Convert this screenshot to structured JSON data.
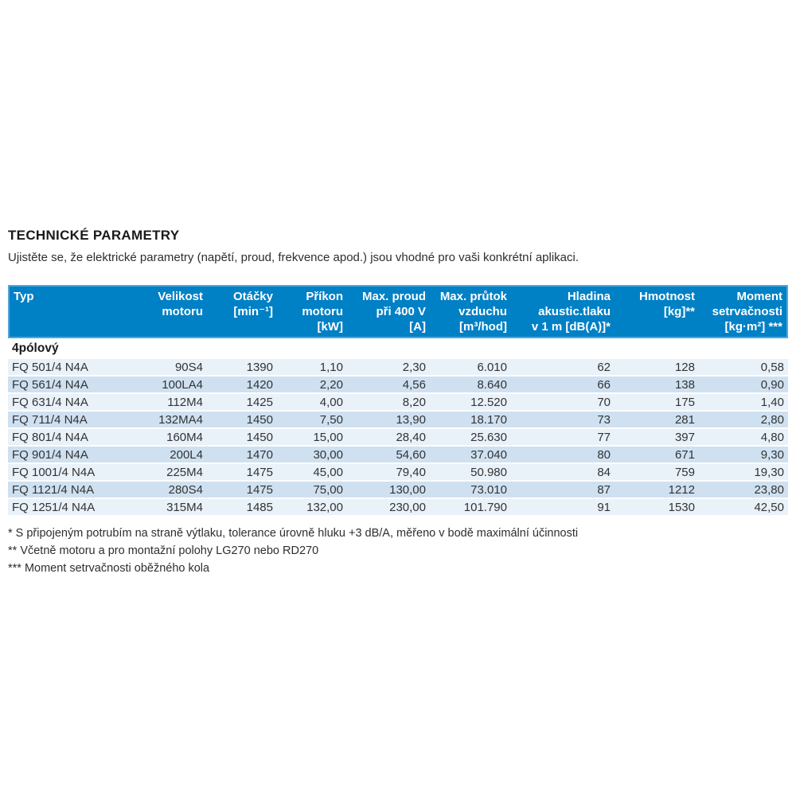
{
  "page": {
    "title": "TECHNICKÉ PARAMETRY",
    "subtitle": "Ujistěte se, že elektrické parametry (napětí, proud, frekvence apod.) jsou vhodné pro vaši konkrétní aplikaci."
  },
  "table": {
    "columns": [
      {
        "label": "Typ"
      },
      {
        "label": "Velikost\nmotoru"
      },
      {
        "label": "Otáčky\n[min⁻¹]"
      },
      {
        "label": "Příkon\nmotoru\n[kW]"
      },
      {
        "label": "Max. proud\npři 400 V\n[A]"
      },
      {
        "label": "Max. průtok\nvzduchu\n[m³/hod]"
      },
      {
        "label": "Hladina\nakustic.tlaku\nv 1 m [dB(A)]*"
      },
      {
        "label": "Hmotnost\n[kg]**"
      },
      {
        "label": "Moment\nsetrvačnosti\n[kg·m²] ***"
      }
    ],
    "section_label": "4pólový",
    "rows": [
      [
        "FQ 501/4 N4A",
        "90S4",
        "1390",
        "1,10",
        "2,30",
        "6.010",
        "62",
        "128",
        "0,58"
      ],
      [
        "FQ 561/4 N4A",
        "100LA4",
        "1420",
        "2,20",
        "4,56",
        "8.640",
        "66",
        "138",
        "0,90"
      ],
      [
        "FQ 631/4 N4A",
        "112M4",
        "1425",
        "4,00",
        "8,20",
        "12.520",
        "70",
        "175",
        "1,40"
      ],
      [
        "FQ 711/4 N4A",
        "132MA4",
        "1450",
        "7,50",
        "13,90",
        "18.170",
        "73",
        "281",
        "2,80"
      ],
      [
        "FQ 801/4 N4A",
        "160M4",
        "1450",
        "15,00",
        "28,40",
        "25.630",
        "77",
        "397",
        "4,80"
      ],
      [
        "FQ 901/4 N4A",
        "200L4",
        "1470",
        "30,00",
        "54,60",
        "37.040",
        "80",
        "671",
        "9,30"
      ],
      [
        "FQ 1001/4 N4A",
        "225M4",
        "1475",
        "45,00",
        "79,40",
        "50.980",
        "84",
        "759",
        "19,30"
      ],
      [
        "FQ 1121/4 N4A",
        "280S4",
        "1475",
        "75,00",
        "130,00",
        "73.010",
        "87",
        "1212",
        "23,80"
      ],
      [
        "FQ 1251/4 N4A",
        "315M4",
        "1485",
        "132,00",
        "230,00",
        "101.790",
        "91",
        "1530",
        "42,50"
      ]
    ]
  },
  "footnotes": [
    "* S připojeným potrubím na straně výtlaku, tolerance úrovně hluku +3 dB/A, měřeno v bodě maximální účinnosti",
    "** Včetně motoru a pro montažní polohy LG270 nebo RD270",
    "*** Moment setrvačnosti oběžného kola"
  ],
  "colors": {
    "header_bg": "#0080c5",
    "header_border": "#55a6d6",
    "header_text": "#ffffff",
    "row_light": "#e9f1f9",
    "row_dark": "#cfe1f1"
  }
}
